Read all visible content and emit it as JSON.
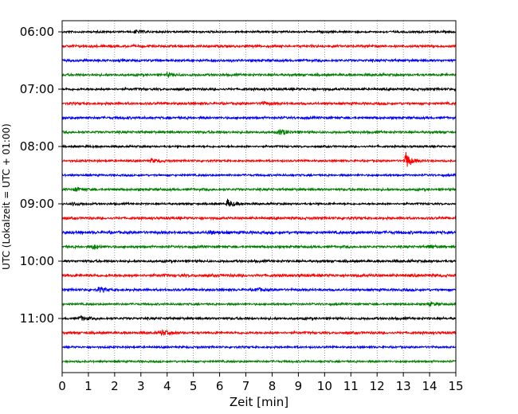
{
  "chart_data": {
    "type": "line",
    "title": "",
    "xlabel": "Zeit  [min]",
    "ylabel": "UTC (Lokalzeit = UTC + 01:00)",
    "xlim": [
      0,
      15
    ],
    "x_ticks": [
      "0",
      "1",
      "2",
      "3",
      "4",
      "5",
      "6",
      "7",
      "8",
      "9",
      "10",
      "11",
      "12",
      "13",
      "14",
      "15"
    ],
    "y_tick_labels": [
      "06:00",
      "07:00",
      "08:00",
      "09:00",
      "10:00",
      "11:00"
    ],
    "grid": "vertical-dotted",
    "trace_colors": [
      "#000000",
      "#ff0000",
      "#0000ff",
      "#008000"
    ],
    "traces": [
      {
        "start": "06:00",
        "color": "#000000",
        "amplitude": 0.25,
        "events": [
          {
            "t": 2.8,
            "amp": 0.5
          }
        ]
      },
      {
        "start": "06:15",
        "color": "#ff0000",
        "amplitude": 0.3,
        "events": []
      },
      {
        "start": "06:30",
        "color": "#0000ff",
        "amplitude": 0.3,
        "events": []
      },
      {
        "start": "06:45",
        "color": "#008000",
        "amplitude": 0.3,
        "events": [
          {
            "t": 4.0,
            "amp": 0.5
          }
        ]
      },
      {
        "start": "07:00",
        "color": "#000000",
        "amplitude": 0.3,
        "events": []
      },
      {
        "start": "07:15",
        "color": "#ff0000",
        "amplitude": 0.3,
        "events": [
          {
            "t": 7.6,
            "amp": 0.5
          }
        ]
      },
      {
        "start": "07:30",
        "color": "#0000ff",
        "amplitude": 0.3,
        "events": []
      },
      {
        "start": "07:45",
        "color": "#008000",
        "amplitude": 0.3,
        "events": [
          {
            "t": 8.3,
            "amp": 0.9
          }
        ]
      },
      {
        "start": "08:00",
        "color": "#000000",
        "amplitude": 0.25,
        "events": []
      },
      {
        "start": "08:15",
        "color": "#ff0000",
        "amplitude": 0.25,
        "events": [
          {
            "t": 3.4,
            "amp": 0.6
          },
          {
            "t": 13.1,
            "amp": 2.5
          }
        ]
      },
      {
        "start": "08:30",
        "color": "#0000ff",
        "amplitude": 0.25,
        "events": []
      },
      {
        "start": "08:45",
        "color": "#008000",
        "amplitude": 0.3,
        "events": [
          {
            "t": 0.5,
            "amp": 0.6
          }
        ]
      },
      {
        "start": "09:00",
        "color": "#000000",
        "amplitude": 0.25,
        "events": [
          {
            "t": 0.4,
            "amp": 0.5
          },
          {
            "t": 6.3,
            "amp": 1.2
          }
        ]
      },
      {
        "start": "09:15",
        "color": "#ff0000",
        "amplitude": 0.3,
        "events": []
      },
      {
        "start": "09:30",
        "color": "#0000ff",
        "amplitude": 0.35,
        "events": [
          {
            "t": 5.6,
            "amp": 0.5
          }
        ]
      },
      {
        "start": "09:45",
        "color": "#008000",
        "amplitude": 0.3,
        "events": [
          {
            "t": 1.2,
            "amp": 0.7
          },
          {
            "t": 14.0,
            "amp": 0.5
          }
        ]
      },
      {
        "start": "10:00",
        "color": "#000000",
        "amplitude": 0.3,
        "events": []
      },
      {
        "start": "10:15",
        "color": "#ff0000",
        "amplitude": 0.35,
        "events": []
      },
      {
        "start": "10:30",
        "color": "#0000ff",
        "amplitude": 0.3,
        "events": [
          {
            "t": 1.4,
            "amp": 0.7
          },
          {
            "t": 7.4,
            "amp": 0.5
          }
        ]
      },
      {
        "start": "10:45",
        "color": "#008000",
        "amplitude": 0.25,
        "events": [
          {
            "t": 14.0,
            "amp": 0.5
          }
        ]
      },
      {
        "start": "11:00",
        "color": "#000000",
        "amplitude": 0.3,
        "events": [
          {
            "t": 0.7,
            "amp": 0.6
          }
        ]
      },
      {
        "start": "11:15",
        "color": "#ff0000",
        "amplitude": 0.3,
        "events": [
          {
            "t": 3.8,
            "amp": 0.8
          }
        ]
      },
      {
        "start": "11:30",
        "color": "#0000ff",
        "amplitude": 0.25,
        "events": []
      },
      {
        "start": "11:45",
        "color": "#008000",
        "amplitude": 0.25,
        "events": []
      }
    ]
  }
}
